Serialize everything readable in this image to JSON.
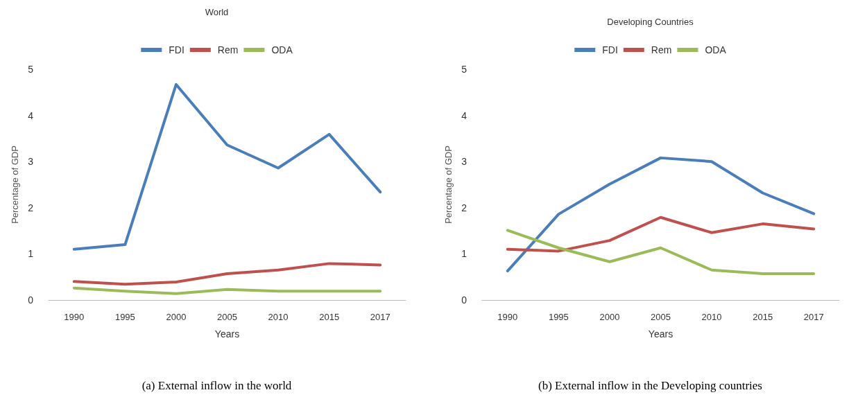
{
  "chart_data": [
    {
      "type": "line",
      "title": "World",
      "xlabel": "Years",
      "ylabel": "Percentage of GDP",
      "categories": [
        "1990",
        "1995",
        "2000",
        "2005",
        "2010",
        "2015",
        "2017"
      ],
      "ylim": [
        0,
        5
      ],
      "yticks": [
        0,
        1,
        2,
        3,
        4,
        5
      ],
      "grid": false,
      "legend": "top",
      "marker": "none",
      "annotations": [
        "(a) External inflow in the world"
      ],
      "series": [
        {
          "name": "FDI",
          "color": "#4a7ebb",
          "values": [
            1.1,
            1.2,
            4.67,
            3.36,
            2.86,
            3.59,
            2.34
          ]
        },
        {
          "name": "Rem",
          "color": "#c0504d",
          "values": [
            0.4,
            0.34,
            0.39,
            0.57,
            0.65,
            0.79,
            0.76
          ]
        },
        {
          "name": "ODA",
          "color": "#9bbb59",
          "values": [
            0.26,
            0.19,
            0.14,
            0.23,
            0.19,
            0.19,
            0.19
          ]
        }
      ]
    },
    {
      "type": "line",
      "title": "Developing Countries",
      "xlabel": "Years",
      "ylabel": "Percentage of GDP",
      "categories": [
        "1990",
        "1995",
        "2000",
        "2005",
        "2010",
        "2015",
        "2017"
      ],
      "ylim": [
        0,
        5
      ],
      "yticks": [
        0,
        1,
        2,
        3,
        4,
        5
      ],
      "grid": false,
      "legend": "top",
      "marker": "none",
      "annotations": [
        "(b) External inflow in the Developing countries"
      ],
      "series": [
        {
          "name": "FDI",
          "color": "#4a7ebb",
          "values": [
            0.63,
            1.86,
            2.51,
            3.08,
            3.0,
            2.32,
            1.87
          ]
        },
        {
          "name": "Rem",
          "color": "#c0504d",
          "values": [
            1.1,
            1.06,
            1.29,
            1.79,
            1.46,
            1.65,
            1.54
          ]
        },
        {
          "name": "ODA",
          "color": "#9bbb59",
          "values": [
            1.51,
            1.13,
            0.83,
            1.13,
            0.65,
            0.57,
            0.57
          ]
        }
      ]
    }
  ]
}
